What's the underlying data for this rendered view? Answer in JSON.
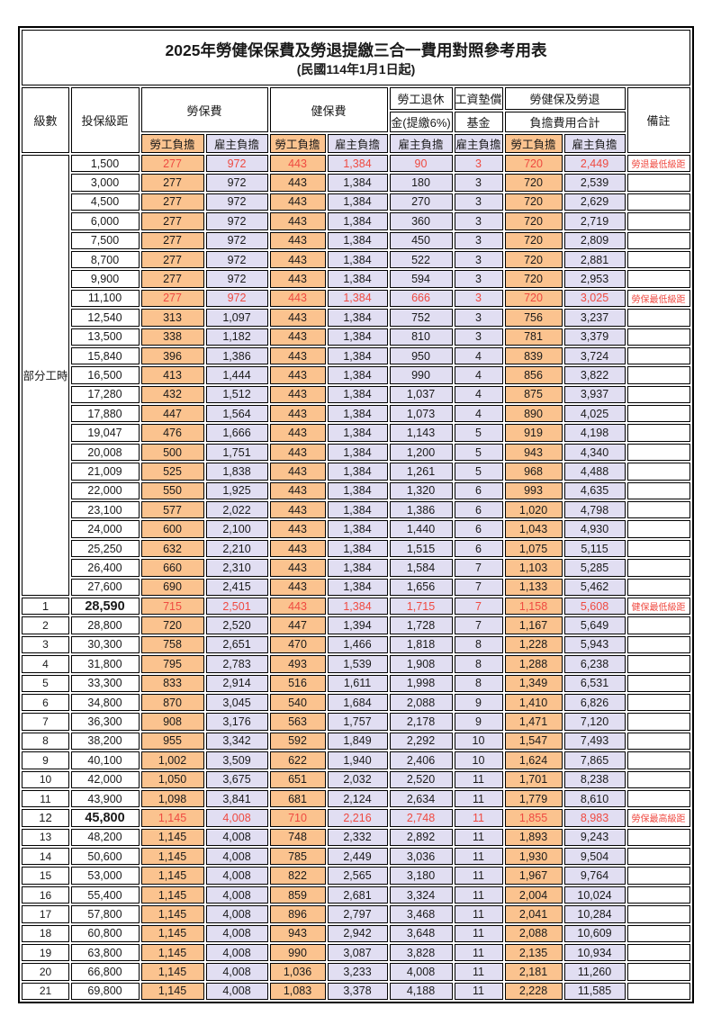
{
  "title": "2025年勞健保保費及勞退提繳三合一費用對照參考用表",
  "subtitle": "(民國114年1月1日起)",
  "columns": {
    "level": "級數",
    "bracket": "投保級距",
    "labor_insurance": "勞保費",
    "health_insurance": "健保費",
    "pension_line1": "勞工退休",
    "pension_line2": "金(提繳6%)",
    "wage_fund_line1": "工資墊償",
    "wage_fund_line2": "基金",
    "total_line1": "勞健保及勞退",
    "total_line2": "負擔費用合計",
    "remark": "備註",
    "employee_share": "勞工負擔",
    "employer_share": "雇主負擔"
  },
  "part_time_label": "部分工時",
  "colors": {
    "employee_bg": "#FBC38F",
    "employer_bg": "#E1DEF2",
    "highlight_text": "#EF4A41",
    "border": "#000000"
  },
  "rows": [
    {
      "level": "",
      "bracket": "1,500",
      "values": [
        "277",
        "972",
        "443",
        "1,384",
        "90",
        "3",
        "720",
        "2,449"
      ],
      "remark": "勞退最低級距",
      "highlight": true,
      "big": false
    },
    {
      "level": "",
      "bracket": "3,000",
      "values": [
        "277",
        "972",
        "443",
        "1,384",
        "180",
        "3",
        "720",
        "2,539"
      ],
      "remark": "",
      "highlight": false,
      "big": false
    },
    {
      "level": "",
      "bracket": "4,500",
      "values": [
        "277",
        "972",
        "443",
        "1,384",
        "270",
        "3",
        "720",
        "2,629"
      ],
      "remark": "",
      "highlight": false,
      "big": false
    },
    {
      "level": "",
      "bracket": "6,000",
      "values": [
        "277",
        "972",
        "443",
        "1,384",
        "360",
        "3",
        "720",
        "2,719"
      ],
      "remark": "",
      "highlight": false,
      "big": false
    },
    {
      "level": "",
      "bracket": "7,500",
      "values": [
        "277",
        "972",
        "443",
        "1,384",
        "450",
        "3",
        "720",
        "2,809"
      ],
      "remark": "",
      "highlight": false,
      "big": false
    },
    {
      "level": "",
      "bracket": "8,700",
      "values": [
        "277",
        "972",
        "443",
        "1,384",
        "522",
        "3",
        "720",
        "2,881"
      ],
      "remark": "",
      "highlight": false,
      "big": false
    },
    {
      "level": "",
      "bracket": "9,900",
      "values": [
        "277",
        "972",
        "443",
        "1,384",
        "594",
        "3",
        "720",
        "2,953"
      ],
      "remark": "",
      "highlight": false,
      "big": false
    },
    {
      "level": "",
      "bracket": "11,100",
      "values": [
        "277",
        "972",
        "443",
        "1,384",
        "666",
        "3",
        "720",
        "3,025"
      ],
      "remark": "勞保最低級距",
      "highlight": true,
      "big": false
    },
    {
      "level": "",
      "bracket": "12,540",
      "values": [
        "313",
        "1,097",
        "443",
        "1,384",
        "752",
        "3",
        "756",
        "3,237"
      ],
      "remark": "",
      "highlight": false,
      "big": false
    },
    {
      "level": "",
      "bracket": "13,500",
      "values": [
        "338",
        "1,182",
        "443",
        "1,384",
        "810",
        "3",
        "781",
        "3,379"
      ],
      "remark": "",
      "highlight": false,
      "big": false
    },
    {
      "level": "",
      "bracket": "15,840",
      "values": [
        "396",
        "1,386",
        "443",
        "1,384",
        "950",
        "4",
        "839",
        "3,724"
      ],
      "remark": "",
      "highlight": false,
      "big": false
    },
    {
      "level": "",
      "bracket": "16,500",
      "values": [
        "413",
        "1,444",
        "443",
        "1,384",
        "990",
        "4",
        "856",
        "3,822"
      ],
      "remark": "",
      "highlight": false,
      "big": false
    },
    {
      "level": "",
      "bracket": "17,280",
      "values": [
        "432",
        "1,512",
        "443",
        "1,384",
        "1,037",
        "4",
        "875",
        "3,937"
      ],
      "remark": "",
      "highlight": false,
      "big": false
    },
    {
      "level": "",
      "bracket": "17,880",
      "values": [
        "447",
        "1,564",
        "443",
        "1,384",
        "1,073",
        "4",
        "890",
        "4,025"
      ],
      "remark": "",
      "highlight": false,
      "big": false
    },
    {
      "level": "",
      "bracket": "19,047",
      "values": [
        "476",
        "1,666",
        "443",
        "1,384",
        "1,143",
        "5",
        "919",
        "4,198"
      ],
      "remark": "",
      "highlight": false,
      "big": false
    },
    {
      "level": "",
      "bracket": "20,008",
      "values": [
        "500",
        "1,751",
        "443",
        "1,384",
        "1,200",
        "5",
        "943",
        "4,340"
      ],
      "remark": "",
      "highlight": false,
      "big": false
    },
    {
      "level": "",
      "bracket": "21,009",
      "values": [
        "525",
        "1,838",
        "443",
        "1,384",
        "1,261",
        "5",
        "968",
        "4,488"
      ],
      "remark": "",
      "highlight": false,
      "big": false
    },
    {
      "level": "",
      "bracket": "22,000",
      "values": [
        "550",
        "1,925",
        "443",
        "1,384",
        "1,320",
        "6",
        "993",
        "4,635"
      ],
      "remark": "",
      "highlight": false,
      "big": false
    },
    {
      "level": "",
      "bracket": "23,100",
      "values": [
        "577",
        "2,022",
        "443",
        "1,384",
        "1,386",
        "6",
        "1,020",
        "4,798"
      ],
      "remark": "",
      "highlight": false,
      "big": false
    },
    {
      "level": "",
      "bracket": "24,000",
      "values": [
        "600",
        "2,100",
        "443",
        "1,384",
        "1,440",
        "6",
        "1,043",
        "4,930"
      ],
      "remark": "",
      "highlight": false,
      "big": false
    },
    {
      "level": "",
      "bracket": "25,250",
      "values": [
        "632",
        "2,210",
        "443",
        "1,384",
        "1,515",
        "6",
        "1,075",
        "5,115"
      ],
      "remark": "",
      "highlight": false,
      "big": false
    },
    {
      "level": "",
      "bracket": "26,400",
      "values": [
        "660",
        "2,310",
        "443",
        "1,384",
        "1,584",
        "7",
        "1,103",
        "5,285"
      ],
      "remark": "",
      "highlight": false,
      "big": false
    },
    {
      "level": "",
      "bracket": "27,600",
      "values": [
        "690",
        "2,415",
        "443",
        "1,384",
        "1,656",
        "7",
        "1,133",
        "5,462"
      ],
      "remark": "",
      "highlight": false,
      "big": false
    },
    {
      "level": "1",
      "bracket": "28,590",
      "values": [
        "715",
        "2,501",
        "443",
        "1,384",
        "1,715",
        "7",
        "1,158",
        "5,608"
      ],
      "remark": "健保最低級距",
      "highlight": true,
      "big": true
    },
    {
      "level": "2",
      "bracket": "28,800",
      "values": [
        "720",
        "2,520",
        "447",
        "1,394",
        "1,728",
        "7",
        "1,167",
        "5,649"
      ],
      "remark": "",
      "highlight": false,
      "big": false
    },
    {
      "level": "3",
      "bracket": "30,300",
      "values": [
        "758",
        "2,651",
        "470",
        "1,466",
        "1,818",
        "8",
        "1,228",
        "5,943"
      ],
      "remark": "",
      "highlight": false,
      "big": false
    },
    {
      "level": "4",
      "bracket": "31,800",
      "values": [
        "795",
        "2,783",
        "493",
        "1,539",
        "1,908",
        "8",
        "1,288",
        "6,238"
      ],
      "remark": "",
      "highlight": false,
      "big": false
    },
    {
      "level": "5",
      "bracket": "33,300",
      "values": [
        "833",
        "2,914",
        "516",
        "1,611",
        "1,998",
        "8",
        "1,349",
        "6,531"
      ],
      "remark": "",
      "highlight": false,
      "big": false
    },
    {
      "level": "6",
      "bracket": "34,800",
      "values": [
        "870",
        "3,045",
        "540",
        "1,684",
        "2,088",
        "9",
        "1,410",
        "6,826"
      ],
      "remark": "",
      "highlight": false,
      "big": false
    },
    {
      "level": "7",
      "bracket": "36,300",
      "values": [
        "908",
        "3,176",
        "563",
        "1,757",
        "2,178",
        "9",
        "1,471",
        "7,120"
      ],
      "remark": "",
      "highlight": false,
      "big": false
    },
    {
      "level": "8",
      "bracket": "38,200",
      "values": [
        "955",
        "3,342",
        "592",
        "1,849",
        "2,292",
        "10",
        "1,547",
        "7,493"
      ],
      "remark": "",
      "highlight": false,
      "big": false
    },
    {
      "level": "9",
      "bracket": "40,100",
      "values": [
        "1,002",
        "3,509",
        "622",
        "1,940",
        "2,406",
        "10",
        "1,624",
        "7,865"
      ],
      "remark": "",
      "highlight": false,
      "big": false
    },
    {
      "level": "10",
      "bracket": "42,000",
      "values": [
        "1,050",
        "3,675",
        "651",
        "2,032",
        "2,520",
        "11",
        "1,701",
        "8,238"
      ],
      "remark": "",
      "highlight": false,
      "big": false
    },
    {
      "level": "11",
      "bracket": "43,900",
      "values": [
        "1,098",
        "3,841",
        "681",
        "2,124",
        "2,634",
        "11",
        "1,779",
        "8,610"
      ],
      "remark": "",
      "highlight": false,
      "big": false
    },
    {
      "level": "12",
      "bracket": "45,800",
      "values": [
        "1,145",
        "4,008",
        "710",
        "2,216",
        "2,748",
        "11",
        "1,855",
        "8,983"
      ],
      "remark": "勞保最高級距",
      "highlight": true,
      "big": true
    },
    {
      "level": "13",
      "bracket": "48,200",
      "values": [
        "1,145",
        "4,008",
        "748",
        "2,332",
        "2,892",
        "11",
        "1,893",
        "9,243"
      ],
      "remark": "",
      "highlight": false,
      "big": false
    },
    {
      "level": "14",
      "bracket": "50,600",
      "values": [
        "1,145",
        "4,008",
        "785",
        "2,449",
        "3,036",
        "11",
        "1,930",
        "9,504"
      ],
      "remark": "",
      "highlight": false,
      "big": false
    },
    {
      "level": "15",
      "bracket": "53,000",
      "values": [
        "1,145",
        "4,008",
        "822",
        "2,565",
        "3,180",
        "11",
        "1,967",
        "9,764"
      ],
      "remark": "",
      "highlight": false,
      "big": false
    },
    {
      "level": "16",
      "bracket": "55,400",
      "values": [
        "1,145",
        "4,008",
        "859",
        "2,681",
        "3,324",
        "11",
        "2,004",
        "10,024"
      ],
      "remark": "",
      "highlight": false,
      "big": false
    },
    {
      "level": "17",
      "bracket": "57,800",
      "values": [
        "1,145",
        "4,008",
        "896",
        "2,797",
        "3,468",
        "11",
        "2,041",
        "10,284"
      ],
      "remark": "",
      "highlight": false,
      "big": false
    },
    {
      "level": "18",
      "bracket": "60,800",
      "values": [
        "1,145",
        "4,008",
        "943",
        "2,942",
        "3,648",
        "11",
        "2,088",
        "10,609"
      ],
      "remark": "",
      "highlight": false,
      "big": false
    },
    {
      "level": "19",
      "bracket": "63,800",
      "values": [
        "1,145",
        "4,008",
        "990",
        "3,087",
        "3,828",
        "11",
        "2,135",
        "10,934"
      ],
      "remark": "",
      "highlight": false,
      "big": false
    },
    {
      "level": "20",
      "bracket": "66,800",
      "values": [
        "1,145",
        "4,008",
        "1,036",
        "3,233",
        "4,008",
        "11",
        "2,181",
        "11,260"
      ],
      "remark": "",
      "highlight": false,
      "big": false
    },
    {
      "level": "21",
      "bracket": "69,800",
      "values": [
        "1,145",
        "4,008",
        "1,083",
        "3,378",
        "4,188",
        "11",
        "2,228",
        "11,585"
      ],
      "remark": "",
      "highlight": false,
      "big": false
    }
  ],
  "part_time_row_span": 23
}
